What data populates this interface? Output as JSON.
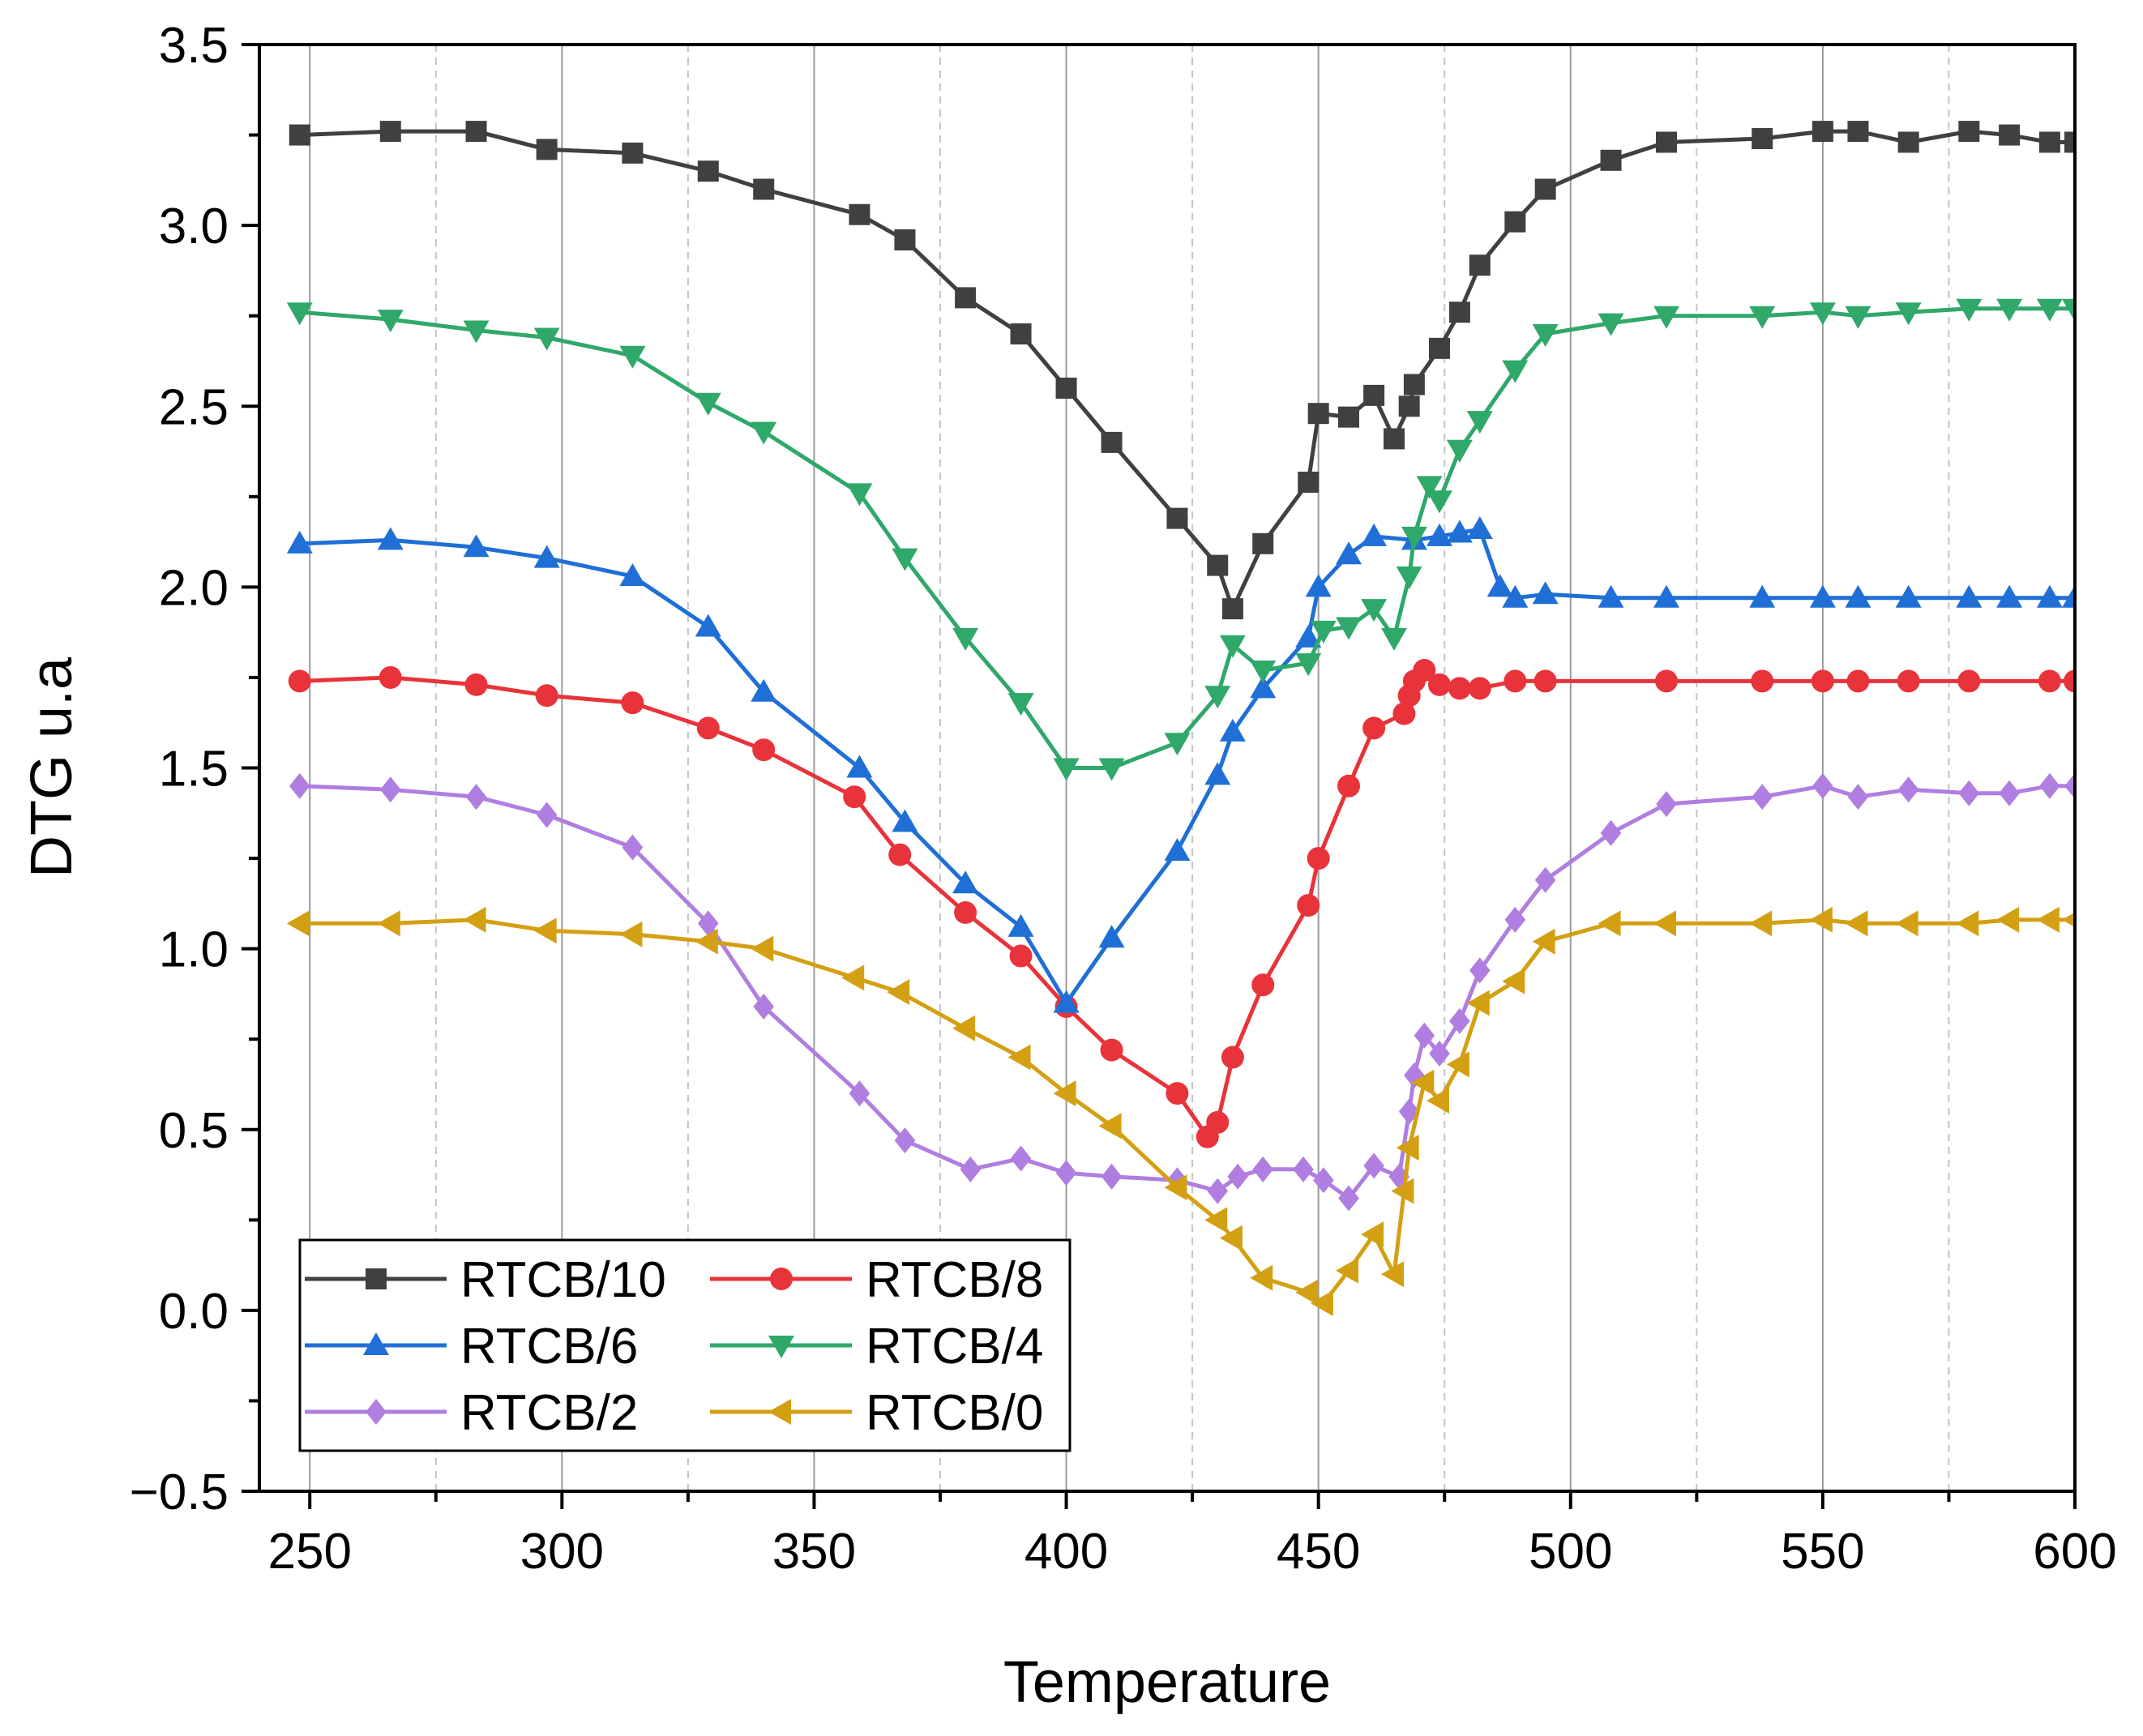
{
  "chart_data": {
    "type": "line",
    "title": "",
    "xlabel": "Temperature",
    "ylabel": "DTG u.a",
    "xlim": [
      240,
      600
    ],
    "ylim": [
      -0.5,
      3.5
    ],
    "x_ticks": [
      250,
      300,
      350,
      400,
      450,
      500,
      550,
      600
    ],
    "y_ticks": [
      -0.5,
      0.0,
      0.5,
      1.0,
      1.5,
      2.0,
      2.5,
      3.0,
      3.5
    ],
    "x_tick_labels": [
      "250",
      "300",
      "350",
      "400",
      "450",
      "500",
      "550",
      "600"
    ],
    "y_tick_labels": [
      "−0.5",
      "0.0",
      "0.5",
      "1.0",
      "1.5",
      "2.0",
      "2.5",
      "3.0",
      "3.5"
    ],
    "grid": "vertical",
    "legend_position": "bottom-left",
    "series": [
      {
        "name": "RTCB/10",
        "color": "#404040",
        "marker": "square",
        "points": [
          [
            248,
            3.25
          ],
          [
            266,
            3.26
          ],
          [
            283,
            3.26
          ],
          [
            297,
            3.21
          ],
          [
            314,
            3.2
          ],
          [
            329,
            3.15
          ],
          [
            340,
            3.1
          ],
          [
            359,
            3.03
          ],
          [
            368,
            2.96
          ],
          [
            380,
            2.8
          ],
          [
            391,
            2.7
          ],
          [
            400,
            2.55
          ],
          [
            409,
            2.4
          ],
          [
            422,
            2.19
          ],
          [
            430,
            2.06
          ],
          [
            433,
            1.94
          ],
          [
            439,
            2.12
          ],
          [
            448,
            2.29
          ],
          [
            450,
            2.48
          ],
          [
            456,
            2.47
          ],
          [
            461,
            2.53
          ],
          [
            465,
            2.41
          ],
          [
            468,
            2.5
          ],
          [
            469,
            2.56
          ],
          [
            474,
            2.66
          ],
          [
            478,
            2.76
          ],
          [
            482,
            2.89
          ],
          [
            489,
            3.01
          ],
          [
            495,
            3.1
          ],
          [
            508,
            3.18
          ],
          [
            519,
            3.23
          ],
          [
            538,
            3.24
          ],
          [
            550,
            3.26
          ],
          [
            557,
            3.26
          ],
          [
            567,
            3.23
          ],
          [
            579,
            3.26
          ],
          [
            587,
            3.25
          ],
          [
            595,
            3.23
          ],
          [
            600,
            3.23
          ]
        ]
      },
      {
        "name": "RTCB/8",
        "color": "#e8333a",
        "marker": "circle",
        "points": [
          [
            248,
            1.74
          ],
          [
            266,
            1.75
          ],
          [
            283,
            1.73
          ],
          [
            297,
            1.7
          ],
          [
            314,
            1.68
          ],
          [
            329,
            1.61
          ],
          [
            340,
            1.55
          ],
          [
            358,
            1.42
          ],
          [
            367,
            1.26
          ],
          [
            380,
            1.1
          ],
          [
            391,
            0.98
          ],
          [
            400,
            0.84
          ],
          [
            409,
            0.72
          ],
          [
            422,
            0.6
          ],
          [
            428,
            0.48
          ],
          [
            430,
            0.52
          ],
          [
            433,
            0.7
          ],
          [
            439,
            0.9
          ],
          [
            448,
            1.12
          ],
          [
            450,
            1.25
          ],
          [
            456,
            1.45
          ],
          [
            461,
            1.61
          ],
          [
            467,
            1.65
          ],
          [
            468,
            1.7
          ],
          [
            469,
            1.74
          ],
          [
            471,
            1.77
          ],
          [
            474,
            1.73
          ],
          [
            478,
            1.72
          ],
          [
            482,
            1.72
          ],
          [
            489,
            1.74
          ],
          [
            495,
            1.74
          ],
          [
            519,
            1.74
          ],
          [
            538,
            1.74
          ],
          [
            550,
            1.74
          ],
          [
            557,
            1.74
          ],
          [
            567,
            1.74
          ],
          [
            579,
            1.74
          ],
          [
            595,
            1.74
          ],
          [
            600,
            1.74
          ]
        ]
      },
      {
        "name": "RTCB/6",
        "color": "#1f6fd6",
        "marker": "triangle-up",
        "points": [
          [
            248,
            2.12
          ],
          [
            266,
            2.13
          ],
          [
            283,
            2.11
          ],
          [
            297,
            2.08
          ],
          [
            314,
            2.03
          ],
          [
            329,
            1.89
          ],
          [
            340,
            1.71
          ],
          [
            359,
            1.5
          ],
          [
            368,
            1.35
          ],
          [
            380,
            1.18
          ],
          [
            391,
            1.06
          ],
          [
            400,
            0.85
          ],
          [
            409,
            1.03
          ],
          [
            422,
            1.27
          ],
          [
            430,
            1.48
          ],
          [
            433,
            1.6
          ],
          [
            439,
            1.72
          ],
          [
            448,
            1.86
          ],
          [
            450,
            2.0
          ],
          [
            456,
            2.09
          ],
          [
            461,
            2.14
          ],
          [
            469,
            2.13
          ],
          [
            474,
            2.14
          ],
          [
            478,
            2.15
          ],
          [
            482,
            2.16
          ],
          [
            486,
            2.0
          ],
          [
            489,
            1.97
          ],
          [
            495,
            1.98
          ],
          [
            508,
            1.97
          ],
          [
            519,
            1.97
          ],
          [
            538,
            1.97
          ],
          [
            550,
            1.97
          ],
          [
            557,
            1.97
          ],
          [
            567,
            1.97
          ],
          [
            579,
            1.97
          ],
          [
            587,
            1.97
          ],
          [
            595,
            1.97
          ],
          [
            600,
            1.97
          ]
        ]
      },
      {
        "name": "RTCB/4",
        "color": "#2fa86a",
        "marker": "triangle-down",
        "points": [
          [
            248,
            2.76
          ],
          [
            266,
            2.74
          ],
          [
            283,
            2.71
          ],
          [
            297,
            2.69
          ],
          [
            314,
            2.64
          ],
          [
            329,
            2.51
          ],
          [
            340,
            2.43
          ],
          [
            359,
            2.26
          ],
          [
            368,
            2.08
          ],
          [
            380,
            1.86
          ],
          [
            391,
            1.68
          ],
          [
            400,
            1.5
          ],
          [
            409,
            1.5
          ],
          [
            422,
            1.57
          ],
          [
            430,
            1.7
          ],
          [
            433,
            1.84
          ],
          [
            439,
            1.77
          ],
          [
            448,
            1.79
          ],
          [
            451,
            1.88
          ],
          [
            456,
            1.89
          ],
          [
            461,
            1.94
          ],
          [
            465,
            1.86
          ],
          [
            468,
            2.03
          ],
          [
            469,
            2.14
          ],
          [
            472,
            2.28
          ],
          [
            474,
            2.24
          ],
          [
            478,
            2.38
          ],
          [
            482,
            2.46
          ],
          [
            489,
            2.6
          ],
          [
            495,
            2.7
          ],
          [
            508,
            2.73
          ],
          [
            519,
            2.75
          ],
          [
            538,
            2.75
          ],
          [
            550,
            2.76
          ],
          [
            557,
            2.75
          ],
          [
            567,
            2.76
          ],
          [
            579,
            2.77
          ],
          [
            587,
            2.77
          ],
          [
            595,
            2.77
          ],
          [
            600,
            2.77
          ]
        ]
      },
      {
        "name": "RTCB/2",
        "color": "#b07ee0",
        "marker": "diamond",
        "points": [
          [
            248,
            1.45
          ],
          [
            266,
            1.44
          ],
          [
            283,
            1.42
          ],
          [
            297,
            1.37
          ],
          [
            314,
            1.28
          ],
          [
            329,
            1.07
          ],
          [
            340,
            0.84
          ],
          [
            359,
            0.6
          ],
          [
            368,
            0.47
          ],
          [
            381,
            0.39
          ],
          [
            391,
            0.42
          ],
          [
            400,
            0.38
          ],
          [
            409,
            0.37
          ],
          [
            422,
            0.36
          ],
          [
            430,
            0.33
          ],
          [
            434,
            0.37
          ],
          [
            439,
            0.39
          ],
          [
            447,
            0.39
          ],
          [
            451,
            0.36
          ],
          [
            456,
            0.31
          ],
          [
            461,
            0.4
          ],
          [
            466,
            0.37
          ],
          [
            468,
            0.55
          ],
          [
            469,
            0.65
          ],
          [
            471,
            0.76
          ],
          [
            474,
            0.71
          ],
          [
            478,
            0.8
          ],
          [
            482,
            0.94
          ],
          [
            489,
            1.08
          ],
          [
            495,
            1.19
          ],
          [
            508,
            1.32
          ],
          [
            519,
            1.4
          ],
          [
            538,
            1.42
          ],
          [
            550,
            1.45
          ],
          [
            557,
            1.42
          ],
          [
            567,
            1.44
          ],
          [
            579,
            1.43
          ],
          [
            587,
            1.43
          ],
          [
            595,
            1.45
          ],
          [
            600,
            1.45
          ]
        ]
      },
      {
        "name": "RTCB/0",
        "color": "#d4a013",
        "marker": "triangle-left",
        "points": [
          [
            248,
            1.07
          ],
          [
            266,
            1.07
          ],
          [
            283,
            1.08
          ],
          [
            297,
            1.05
          ],
          [
            314,
            1.04
          ],
          [
            329,
            1.02
          ],
          [
            340,
            1.0
          ],
          [
            358,
            0.92
          ],
          [
            367,
            0.88
          ],
          [
            380,
            0.78
          ],
          [
            391,
            0.7
          ],
          [
            400,
            0.6
          ],
          [
            409,
            0.51
          ],
          [
            422,
            0.34
          ],
          [
            430,
            0.25
          ],
          [
            433,
            0.2
          ],
          [
            439,
            0.09
          ],
          [
            448,
            0.05
          ],
          [
            451,
            0.02
          ],
          [
            456,
            0.11
          ],
          [
            461,
            0.21
          ],
          [
            465,
            0.1
          ],
          [
            467,
            0.33
          ],
          [
            468,
            0.45
          ],
          [
            471,
            0.63
          ],
          [
            474,
            0.58
          ],
          [
            478,
            0.68
          ],
          [
            482,
            0.85
          ],
          [
            489,
            0.91
          ],
          [
            495,
            1.02
          ],
          [
            508,
            1.07
          ],
          [
            519,
            1.07
          ],
          [
            538,
            1.07
          ],
          [
            550,
            1.08
          ],
          [
            557,
            1.07
          ],
          [
            567,
            1.07
          ],
          [
            579,
            1.07
          ],
          [
            587,
            1.08
          ],
          [
            595,
            1.08
          ],
          [
            600,
            1.08
          ]
        ]
      }
    ]
  }
}
